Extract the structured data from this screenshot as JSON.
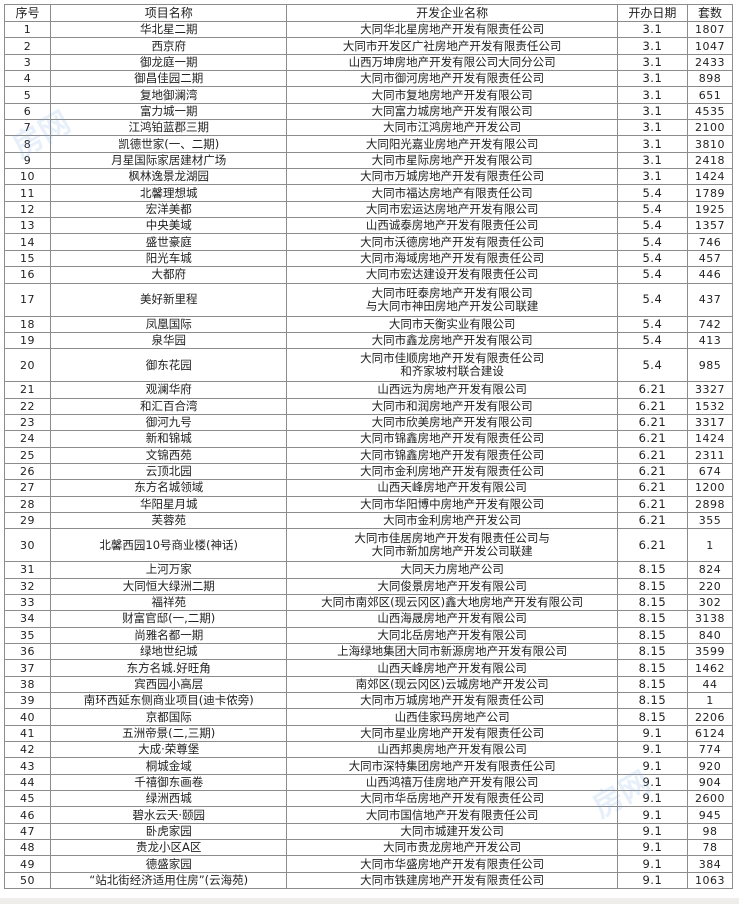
{
  "headers": [
    "序号",
    "项目名称",
    "开发企业名称",
    "开办日期",
    "套数"
  ],
  "watermark": "房网",
  "rows": [
    [
      "1",
      "华北星二期",
      "大同华北星房地产开发有限责任公司",
      "3.1",
      "1807"
    ],
    [
      "2",
      "西京府",
      "大同市开发区广社房地产开发有限责任公司",
      "3.1",
      "1047"
    ],
    [
      "3",
      "御龙庭一期",
      "山西万坤房地产开发有限公司大同分公司",
      "3.1",
      "2433"
    ],
    [
      "4",
      "御昌佳园二期",
      "大同市御河房地产开发有限责任公司",
      "3.1",
      "898"
    ],
    [
      "5",
      "复地御澜湾",
      "大同市复地房地产开发有限公司",
      "3.1",
      "651"
    ],
    [
      "6",
      "富力城一期",
      "大同富力城房地产开发有限公司",
      "3.1",
      "4535"
    ],
    [
      "7",
      "江鸿铂蓝郡三期",
      "大同市江鸿房地产开发公司",
      "3.1",
      "2100"
    ],
    [
      "8",
      "凯德世家(一、二期)",
      "大同阳光嘉业房地产开发有限公司",
      "3.1",
      "3810"
    ],
    [
      "9",
      "月星国际家居建材广场",
      "大同市星际房地产开发有限公司",
      "3.1",
      "2418"
    ],
    [
      "10",
      "枫林逸景龙湖园",
      "大同市万城房地产开发有限责任公司",
      "3.1",
      "1424"
    ],
    [
      "11",
      "北馨理想城",
      "大同市福达房地产有限责任公司",
      "5.4",
      "1789"
    ],
    [
      "12",
      "宏洋美都",
      "大同市宏运达房地产开发有限公司",
      "5.4",
      "1925"
    ],
    [
      "13",
      "中央美域",
      "山西诚泰房地产开发有限责任公司",
      "5.4",
      "1357"
    ],
    [
      "14",
      "盛世豪庭",
      "大同市沃德房地产开发有限责任公司",
      "5.4",
      "746"
    ],
    [
      "15",
      "阳光车城",
      "大同市海域房地产开发有限责任公司",
      "5.4",
      "457"
    ],
    [
      "16",
      "大都府",
      "大同市宏达建设开发有限责任公司",
      "5.4",
      "446"
    ],
    [
      "17",
      "美好新里程",
      "大同市旺泰房地产开发有限公司\n与大同市神田房地产开发公司联建",
      "5.4",
      "437"
    ],
    [
      "18",
      "凤凰国际",
      "大同市天衡实业有限公司",
      "5.4",
      "742"
    ],
    [
      "19",
      "泉华园",
      "大同市鑫龙房地产开发有限公司",
      "5.4",
      "413"
    ],
    [
      "20",
      "御东花园",
      "大同市佳顺房地产开发有限责任公司\n和齐家坡村联合建设",
      "5.4",
      "985"
    ],
    [
      "21",
      "观澜华府",
      "山西远为房地产开发有限公司",
      "6.21",
      "3327"
    ],
    [
      "22",
      "和汇百合湾",
      "大同市和润房地产开发有限公司",
      "6.21",
      "1532"
    ],
    [
      "23",
      "御河九号",
      "大同市欣美房地产开发有限公司",
      "6.21",
      "3317"
    ],
    [
      "24",
      "新和锦城",
      "大同市锦鑫房地产开发有限责任公司",
      "6.21",
      "1424"
    ],
    [
      "25",
      "文锦西苑",
      "大同市锦鑫房地产开发有限责任公司",
      "6.21",
      "2311"
    ],
    [
      "26",
      "云顶北园",
      "大同市金利房地产开发有限责任公司",
      "6.21",
      "674"
    ],
    [
      "27",
      "东方名城领域",
      "山西天峰房地产开发有限公司",
      "6.21",
      "1200"
    ],
    [
      "28",
      "华阳星月城",
      "大同市华阳博中房地产开发有限公司",
      "6.21",
      "2898"
    ],
    [
      "29",
      "芙蓉苑",
      "大同市金利房地产开发公司",
      "6.21",
      "355"
    ],
    [
      "30",
      "北馨西园10号商业楼(神话)",
      "大同市佳居房地产开发有限责任公司与\n大同市新加房地产开发公司联建",
      "6.21",
      "1"
    ],
    [
      "31",
      "上河万家",
      "大同天力房地产公司",
      "8.15",
      "824"
    ],
    [
      "32",
      "大同恒大绿洲二期",
      "大同俊景房地产开发有限公司",
      "8.15",
      "220"
    ],
    [
      "33",
      "福祥苑",
      "大同市南郊区(现云冈区)鑫大地房地产开发有限公司",
      "8.15",
      "302"
    ],
    [
      "34",
      "财富官邸(一,二期)",
      "山西海晟房地产开发有限公司",
      "8.15",
      "3138"
    ],
    [
      "35",
      "尚雅名都一期",
      "大同北岳房地产开发有限公司",
      "8.15",
      "840"
    ],
    [
      "36",
      "绿地世纪城",
      "上海绿地集团大同市新源房地产开发有限公司",
      "8.15",
      "3599"
    ],
    [
      "37",
      "东方名城.好旺角",
      "山西天峰房地产开发有限公司",
      "8.15",
      "1462"
    ],
    [
      "38",
      "宾西园小高层",
      "南郊区(现云冈区)云城房地产开发公司",
      "8.15",
      "44"
    ],
    [
      "39",
      "南环西延东侧商业项目(迪卡侬旁)",
      "大同市万城房地产开发有限责任公司",
      "8.15",
      "1"
    ],
    [
      "40",
      "京都国际",
      "山西佳家玛房地产公司",
      "8.15",
      "2206"
    ],
    [
      "41",
      "五洲帝景(二,三期)",
      "大同市星业房地产开发有限责任公司",
      "9.1",
      "6124"
    ],
    [
      "42",
      "大成·荣尊堡",
      "山西邦奥房地产开发有限公司",
      "9.1",
      "774"
    ],
    [
      "43",
      "桐城金域",
      "大同市深特集团房地产开发有限责任公司",
      "9.1",
      "920"
    ],
    [
      "44",
      "千禧御东画卷",
      "山西鸿禧万佳房地产开发有限公司",
      "9.1",
      "904"
    ],
    [
      "45",
      "绿洲西城",
      "大同市华岳房地产开发有限责任公司",
      "9.1",
      "2600"
    ],
    [
      "46",
      "碧水云天·颐园",
      "大同市国信地产开发有限责任公司",
      "9.1",
      "945"
    ],
    [
      "47",
      "卧虎家园",
      "大同市城建开发公司",
      "9.1",
      "98"
    ],
    [
      "48",
      "贵龙小区A区",
      "大同市贵龙房地产开发公司",
      "9.1",
      "78"
    ],
    [
      "49",
      "德盛家园",
      "大同市华盛房地产开发有限责任公司",
      "9.1",
      "384"
    ],
    [
      "50",
      "“站北街经济适用住房”(云海苑)",
      "大同市铁建房地产开发有限责任公司",
      "9.1",
      "1063"
    ]
  ]
}
